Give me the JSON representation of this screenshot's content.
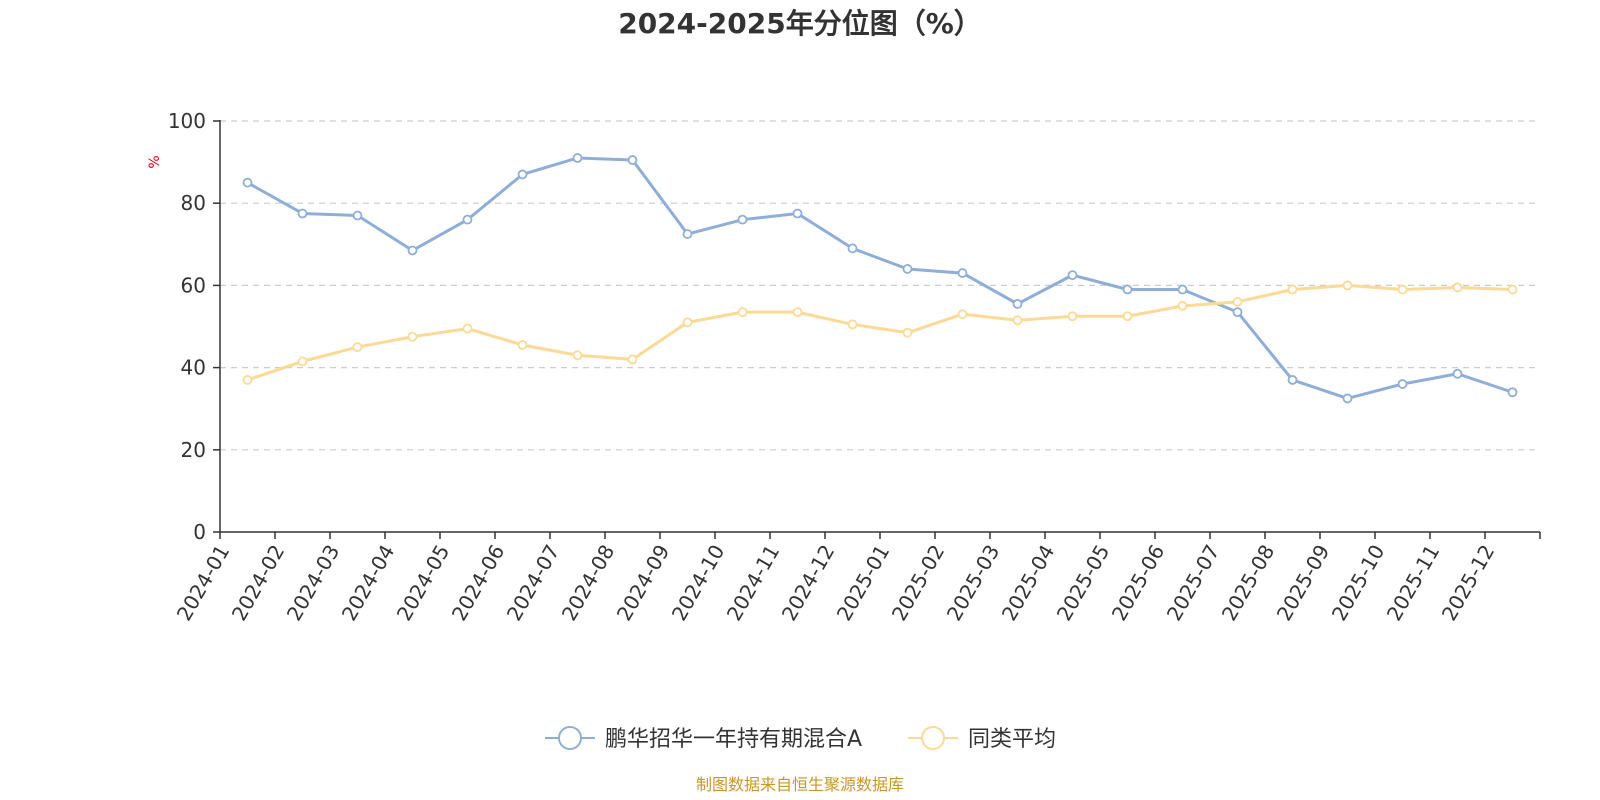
{
  "chart_data": {
    "type": "line",
    "title": "2024-2025年分位图（%）",
    "ylabel": "%",
    "xlabel": "",
    "ylim": [
      0,
      100
    ],
    "yticks": [
      0,
      20,
      40,
      60,
      80,
      100
    ],
    "grid": true,
    "legend_position": "bottom",
    "categories": [
      "2024-01",
      "2024-02",
      "2024-03",
      "2024-04",
      "2024-05",
      "2024-06",
      "2024-07",
      "2024-08",
      "2024-09",
      "2024-10",
      "2024-11",
      "2024-12",
      "2025-01",
      "2025-02",
      "2025-03",
      "2025-04",
      "2025-05",
      "2025-06",
      "2025-07",
      "2025-08",
      "2025-09",
      "2025-10",
      "2025-11",
      "2025-12"
    ],
    "series": [
      {
        "name": "鹏华招华一年持有期混合A",
        "color": "#8eaed8",
        "values": [
          85,
          77.5,
          77,
          68.5,
          76,
          87,
          91,
          90.5,
          72.5,
          76,
          77.5,
          69,
          64,
          63,
          55.5,
          62.5,
          59,
          59,
          53.5,
          37,
          32.5,
          36,
          38.5,
          34
        ]
      },
      {
        "name": "同类平均",
        "color": "#fcd995",
        "values": [
          37,
          41.5,
          45,
          47.5,
          49.5,
          45.5,
          43,
          42,
          51,
          53.5,
          53.5,
          50.5,
          48.5,
          53,
          51.5,
          52.5,
          52.5,
          55,
          56,
          59,
          60,
          59,
          59.5,
          59
        ]
      }
    ]
  },
  "source_text": "制图数据来自恒生聚源数据库"
}
